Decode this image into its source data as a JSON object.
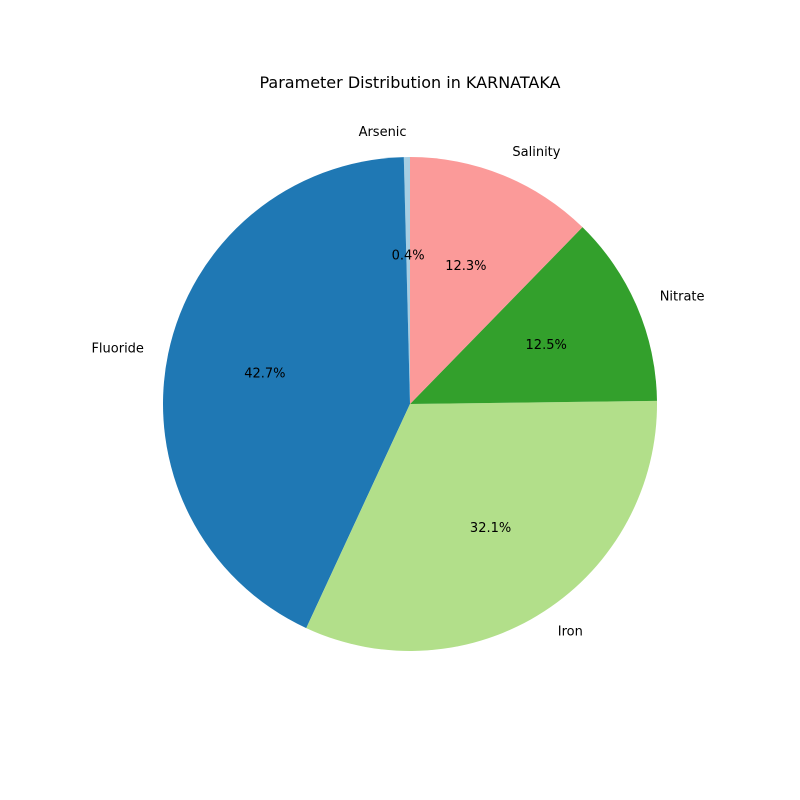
{
  "chart_data": {
    "type": "pie",
    "title": "Parameter Distribution in KARNATAKA",
    "start_angle_deg": 90,
    "direction": "counterclockwise",
    "slices": [
      {
        "label": "Arsenic",
        "value": 0.4,
        "display": "0.4%",
        "color": "#a6cee3"
      },
      {
        "label": "Fluoride",
        "value": 42.7,
        "display": "42.7%",
        "color": "#1f78b4"
      },
      {
        "label": "Iron",
        "value": 32.1,
        "display": "32.1%",
        "color": "#b2df8a"
      },
      {
        "label": "Nitrate",
        "value": 12.5,
        "display": "12.5%",
        "color": "#33a02c"
      },
      {
        "label": "Salinity",
        "value": 12.3,
        "display": "12.3%",
        "color": "#fb9a99"
      }
    ]
  }
}
